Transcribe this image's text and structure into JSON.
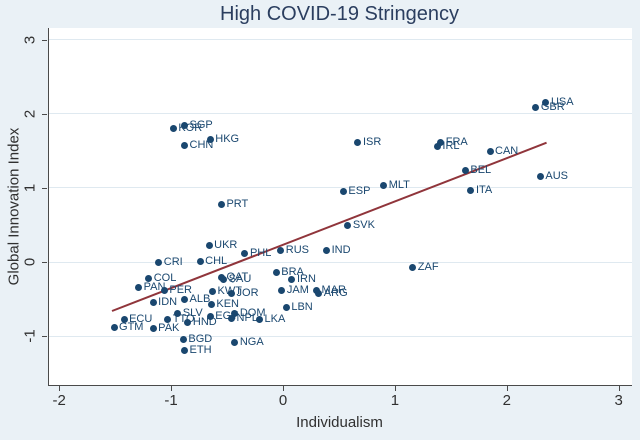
{
  "title": "High COVID-19 Stringency",
  "chart_data": {
    "type": "scatter",
    "title": "High COVID-19 Stringency",
    "xlabel": "Individualism",
    "ylabel": "Global Innovation Index",
    "xlim": [
      -2.1,
      3.11
    ],
    "ylim": [
      -1.66,
      3.16
    ],
    "xticks": [
      -2,
      -1,
      0,
      1,
      2,
      3
    ],
    "yticks": [
      -1,
      0,
      1,
      2,
      3
    ],
    "grid": "horizontal-only",
    "legend": "none",
    "colors": {
      "marker": "#1a476f",
      "marker_label": "#1a476f",
      "fit_line": "#90353b",
      "background": "#eaf1f6",
      "plot_background": "#ffffff",
      "gridline": "#dfe9f0",
      "title_text": "#2b3e5f",
      "axis_text": "#303030"
    },
    "fit_line": {
      "x1": -1.53,
      "y1": -0.66,
      "x2": 2.35,
      "y2": 1.61
    },
    "points": [
      {
        "label": "KOR",
        "x": -0.98,
        "y": 1.8
      },
      {
        "label": "SGP",
        "x": -0.88,
        "y": 1.85
      },
      {
        "label": "CHN",
        "x": -0.88,
        "y": 1.57
      },
      {
        "label": "HKG",
        "x": -0.65,
        "y": 1.65
      },
      {
        "label": "ISR",
        "x": 0.67,
        "y": 1.61
      },
      {
        "label": "FRA",
        "x": 1.41,
        "y": 1.62
      },
      {
        "label": "IRL",
        "x": 1.38,
        "y": 1.56
      },
      {
        "label": "CAN",
        "x": 1.85,
        "y": 1.49
      },
      {
        "label": "BEL",
        "x": 1.63,
        "y": 1.24
      },
      {
        "label": "AUS",
        "x": 2.3,
        "y": 1.16
      },
      {
        "label": "USA",
        "x": 2.35,
        "y": 2.15
      },
      {
        "label": "GBR",
        "x": 2.26,
        "y": 2.08
      },
      {
        "label": "MLT",
        "x": 0.9,
        "y": 1.03
      },
      {
        "label": "ITA",
        "x": 1.68,
        "y": 0.96
      },
      {
        "label": "ESP",
        "x": 0.54,
        "y": 0.95
      },
      {
        "label": "PRT",
        "x": -0.55,
        "y": 0.78
      },
      {
        "label": "SVK",
        "x": 0.58,
        "y": 0.49
      },
      {
        "label": "UKR",
        "x": -0.66,
        "y": 0.23
      },
      {
        "label": "PHL",
        "x": -0.34,
        "y": 0.12
      },
      {
        "label": "RUS",
        "x": -0.02,
        "y": 0.16
      },
      {
        "label": "IND",
        "x": 0.39,
        "y": 0.15
      },
      {
        "label": "CRI",
        "x": -1.11,
        "y": 0.0
      },
      {
        "label": "CHL",
        "x": -0.74,
        "y": 0.01
      },
      {
        "label": "COL",
        "x": -1.2,
        "y": -0.22
      },
      {
        "label": "BRA",
        "x": -0.06,
        "y": -0.14
      },
      {
        "label": "IRN",
        "x": 0.08,
        "y": -0.23
      },
      {
        "label": "QAT",
        "x": -0.55,
        "y": -0.21
      },
      {
        "label": "SAU",
        "x": -0.53,
        "y": -0.23
      },
      {
        "label": "ZAF",
        "x": 1.16,
        "y": -0.08
      },
      {
        "label": "PAN",
        "x": -1.29,
        "y": -0.35
      },
      {
        "label": "PER",
        "x": -1.06,
        "y": -0.38
      },
      {
        "label": "JAM",
        "x": -0.01,
        "y": -0.38
      },
      {
        "label": "MAR",
        "x": 0.3,
        "y": -0.38
      },
      {
        "label": "ARG",
        "x": 0.32,
        "y": -0.42
      },
      {
        "label": "KWT",
        "x": -0.63,
        "y": -0.4
      },
      {
        "label": "JOR",
        "x": -0.46,
        "y": -0.43
      },
      {
        "label": "IDN",
        "x": -1.16,
        "y": -0.54
      },
      {
        "label": "ALB",
        "x": -0.88,
        "y": -0.5
      },
      {
        "label": "KEN",
        "x": -0.64,
        "y": -0.57
      },
      {
        "label": "LBN",
        "x": 0.03,
        "y": -0.62
      },
      {
        "label": "ECU",
        "x": -1.42,
        "y": -0.77
      },
      {
        "label": "TTO",
        "x": -1.03,
        "y": -0.78
      },
      {
        "label": "SLV",
        "x": -0.94,
        "y": -0.7
      },
      {
        "label": "EGY",
        "x": -0.65,
        "y": -0.74
      },
      {
        "label": "DOM",
        "x": -0.43,
        "y": -0.69
      },
      {
        "label": "NPL",
        "x": -0.46,
        "y": -0.76
      },
      {
        "label": "LKA",
        "x": -0.21,
        "y": -0.77
      },
      {
        "label": "GTM",
        "x": -1.51,
        "y": -0.89
      },
      {
        "label": "PAK",
        "x": -1.16,
        "y": -0.9
      },
      {
        "label": "HND",
        "x": -0.85,
        "y": -0.82
      },
      {
        "label": "BGD",
        "x": -0.89,
        "y": -1.04
      },
      {
        "label": "ETH",
        "x": -0.88,
        "y": -1.2
      },
      {
        "label": "NGA",
        "x": -0.43,
        "y": -1.08
      }
    ]
  }
}
